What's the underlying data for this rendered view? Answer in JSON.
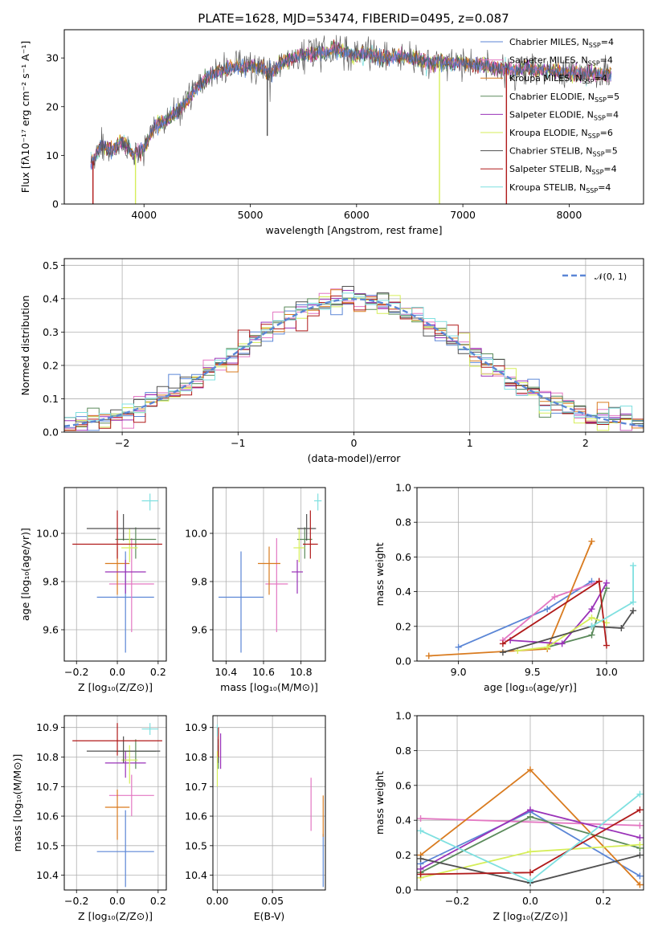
{
  "figure_title": "PLATE=1628, MJD=53474, FIBERID=0495, z=0.087",
  "colors": {
    "Chabrier MILES": "#5b86d6",
    "Salpeter MILES": "#e377c2",
    "Kroupa MILES": "#d97b1f",
    "Chabrier ELODIE": "#5b8a5b",
    "Salpeter ELODIE": "#9a32b8",
    "Kroupa ELODIE": "#d6ee5a",
    "Chabrier STELIB": "#505050",
    "Salpeter STELIB": "#b01a1a",
    "Kroupa STELIB": "#7fe0e0"
  },
  "chart_data": [
    {
      "id": "spectrum",
      "type": "line",
      "xlabel": "wavelength [Angstrom, rest frame]",
      "ylabel": "Flux [fλ10⁻¹⁷ erg cm⁻² s⁻¹ A⁻¹]",
      "xlim": [
        3250,
        8700
      ],
      "ylim": [
        0,
        35.8
      ],
      "xticks": [
        "4000",
        "5000",
        "6000",
        "7000",
        "8000"
      ],
      "yticks": [
        "0",
        "10",
        "20",
        "30"
      ],
      "grid": false,
      "legend": "top-right",
      "legend_entries": [
        "Chabrier MILES, N_SSP=4",
        "Salpeter MILES, N_SSP=4",
        "Kroupa MILES, N_SSP=4",
        "Chabrier ELODIE, N_SSP=5",
        "Salpeter ELODIE, N_SSP=4",
        "Kroupa ELODIE, N_SSP=6",
        "Chabrier STELIB, N_SSP=5",
        "Salpeter STELIB, N_SSP=4",
        "Kroupa STELIB, N_SSP=4"
      ],
      "continuum": {
        "x": [
          3500,
          3600,
          3700,
          3800,
          3900,
          4000,
          4100,
          4200,
          4300,
          4400,
          4500,
          4600,
          4700,
          4800,
          4900,
          5000,
          5100,
          5200,
          5300,
          5400,
          5500,
          5600,
          5700,
          5800,
          5900,
          6000,
          6100,
          6200,
          6300,
          6400,
          6500,
          6600,
          6700,
          6800,
          6900,
          7000,
          7100,
          7200,
          7300,
          7400,
          7500,
          7600,
          7700,
          7800,
          7900,
          8000,
          8100,
          8200,
          8300,
          8400
        ],
        "y": [
          8,
          12,
          11,
          13,
          10,
          11.5,
          16,
          17,
          18.5,
          21,
          24,
          26,
          27,
          28,
          28,
          28.5,
          28,
          27,
          29,
          30,
          30.5,
          31,
          31,
          32,
          31,
          30.5,
          31,
          30,
          30,
          30.5,
          30,
          29.5,
          29,
          29.5,
          29,
          29,
          28.5,
          28.5,
          28,
          28,
          27.5,
          28,
          27.5,
          27.5,
          27,
          27,
          27,
          27,
          26.5,
          26.5
        ]
      },
      "spikes": [
        {
          "x": 3520,
          "y": 0
        },
        {
          "x": 3920,
          "y": 0
        },
        {
          "x": 5160,
          "y": 14
        },
        {
          "x": 6780,
          "y": 0
        },
        {
          "x": 7410,
          "y": 0
        }
      ]
    },
    {
      "id": "residuals",
      "type": "histogram",
      "xlabel": "(data-model)/error",
      "ylabel": "Normed distribution",
      "xlim": [
        -2.5,
        2.5
      ],
      "ylim": [
        0,
        0.52
      ],
      "xticks": [
        "−2",
        "−1",
        "0",
        "1",
        "2"
      ],
      "yticks": [
        "0.0",
        "0.1",
        "0.2",
        "0.3",
        "0.4",
        "0.5"
      ],
      "grid": true,
      "legend": "top-right",
      "legend_label": "𝒩(0, 1)",
      "bin_width": 0.1,
      "reference_curve": "normal(0,1)"
    },
    {
      "id": "age-vs-Z",
      "type": "scatter",
      "xlabel": "Z [log₁₀(Z/Z⊙)]",
      "ylabel": "age  [log₁₀(age/yr)]",
      "xlim": [
        -0.26,
        0.24
      ],
      "ylim": [
        9.47,
        10.19
      ],
      "xticks": [
        "−0.2",
        "0.0",
        "0.2"
      ],
      "yticks": [
        "9.6",
        "9.8",
        "10.0"
      ],
      "grid": true,
      "series": [
        {
          "name": "Chabrier MILES",
          "x": 0.04,
          "y": 9.735,
          "xerr": 0.14,
          "yerr": [
            0.23,
            0.19
          ]
        },
        {
          "name": "Salpeter MILES",
          "x": 0.07,
          "y": 9.79,
          "xerr": 0.11,
          "yerr": [
            0.2,
            0.19
          ]
        },
        {
          "name": "Kroupa MILES",
          "x": 0.0,
          "y": 9.875,
          "xerr": 0.06,
          "yerr": [
            0.13,
            0.07
          ]
        },
        {
          "name": "Chabrier ELODIE",
          "x": 0.09,
          "y": 9.975,
          "xerr": 0.1,
          "yerr": [
            0.08,
            0.05
          ]
        },
        {
          "name": "Salpeter ELODIE",
          "x": 0.04,
          "y": 9.84,
          "xerr": 0.1,
          "yerr": [
            0.09,
            0.05
          ]
        },
        {
          "name": "Kroupa ELODIE",
          "x": 0.06,
          "y": 9.94,
          "xerr": 0.04,
          "yerr": [
            0.06,
            0.08
          ]
        },
        {
          "name": "Chabrier STELIB",
          "x": 0.03,
          "y": 10.02,
          "xerr": 0.18,
          "yerr": [
            0.05,
            0.06
          ]
        },
        {
          "name": "Salpeter STELIB",
          "x": 0.0,
          "y": 9.955,
          "xerr": 0.22,
          "yerr": [
            0.06,
            0.14
          ]
        },
        {
          "name": "Kroupa STELIB",
          "x": 0.16,
          "y": 10.135,
          "xerr": 0.04,
          "yerr": [
            0.04,
            0.03
          ]
        }
      ]
    },
    {
      "id": "age-vs-mass",
      "type": "scatter",
      "xlabel": "mass [log₁₀(M/M⊙)]",
      "ylabel": "",
      "xlim": [
        10.33,
        10.93
      ],
      "ylim": [
        9.47,
        10.19
      ],
      "xticks": [
        "10.4",
        "10.6",
        "10.8"
      ],
      "yticks": [
        "9.6",
        "9.8",
        "10.0"
      ],
      "grid": true,
      "series": [
        {
          "name": "Chabrier MILES",
          "x": 10.48,
          "y": 9.735,
          "xerr": 0.12,
          "yerr": [
            0.23,
            0.19
          ]
        },
        {
          "name": "Salpeter MILES",
          "x": 10.67,
          "y": 9.79,
          "xerr": 0.06,
          "yerr": [
            0.2,
            0.19
          ]
        },
        {
          "name": "Kroupa MILES",
          "x": 10.63,
          "y": 9.875,
          "xerr": 0.06,
          "yerr": [
            0.13,
            0.07
          ]
        },
        {
          "name": "Chabrier ELODIE",
          "x": 10.82,
          "y": 9.975,
          "xerr": 0.04,
          "yerr": [
            0.08,
            0.05
          ]
        },
        {
          "name": "Salpeter ELODIE",
          "x": 10.78,
          "y": 9.84,
          "xerr": 0.03,
          "yerr": [
            0.09,
            0.05
          ]
        },
        {
          "name": "Kroupa ELODIE",
          "x": 10.79,
          "y": 9.94,
          "xerr": 0.03,
          "yerr": [
            0.06,
            0.08
          ]
        },
        {
          "name": "Chabrier STELIB",
          "x": 10.83,
          "y": 10.02,
          "xerr": 0.05,
          "yerr": [
            0.05,
            0.06
          ]
        },
        {
          "name": "Salpeter STELIB",
          "x": 10.85,
          "y": 9.955,
          "xerr": 0.04,
          "yerr": [
            0.06,
            0.14
          ]
        },
        {
          "name": "Kroupa STELIB",
          "x": 10.89,
          "y": 10.135,
          "xerr": 0.02,
          "yerr": [
            0.04,
            0.03
          ]
        }
      ]
    },
    {
      "id": "massweight-vs-age",
      "type": "line",
      "xlabel": "age  [log₁₀(age/yr)]",
      "ylabel": "mass weight",
      "xlim": [
        8.72,
        10.25
      ],
      "ylim": [
        0,
        1
      ],
      "xticks": [
        "9.0",
        "9.5",
        "10.0"
      ],
      "yticks": [
        "0.0",
        "0.2",
        "0.4",
        "0.6",
        "0.8",
        "1.0"
      ],
      "grid": true,
      "series": [
        {
          "name": "Chabrier MILES",
          "x": [
            9.0,
            9.6,
            9.9
          ],
          "y": [
            0.08,
            0.3,
            0.46
          ]
        },
        {
          "name": "Salpeter MILES",
          "x": [
            9.3,
            9.65,
            9.95
          ],
          "y": [
            0.12,
            0.37,
            0.46
          ]
        },
        {
          "name": "Kroupa MILES",
          "x": [
            8.8,
            9.6,
            9.9
          ],
          "y": [
            0.03,
            0.07,
            0.69
          ]
        },
        {
          "name": "Chabrier ELODIE",
          "x": [
            9.6,
            9.9,
            10.0
          ],
          "y": [
            0.08,
            0.15,
            0.42
          ]
        },
        {
          "name": "Salpeter ELODIE",
          "x": [
            9.35,
            9.7,
            9.9,
            10.0
          ],
          "y": [
            0.12,
            0.1,
            0.3,
            0.45
          ]
        },
        {
          "name": "Kroupa ELODIE",
          "x": [
            9.4,
            9.6,
            9.9,
            10.0
          ],
          "y": [
            0.06,
            0.08,
            0.25,
            0.22
          ]
        },
        {
          "name": "Chabrier STELIB",
          "x": [
            9.3,
            9.9,
            10.1,
            10.18
          ],
          "y": [
            0.05,
            0.2,
            0.19,
            0.29
          ]
        },
        {
          "name": "Salpeter STELIB",
          "x": [
            9.3,
            9.95,
            10.0
          ],
          "y": [
            0.1,
            0.46,
            0.09
          ]
        },
        {
          "name": "Kroupa STELIB",
          "x": [
            9.9,
            10.18,
            10.18
          ],
          "y": [
            0.2,
            0.34,
            0.55
          ]
        }
      ]
    },
    {
      "id": "mass-vs-Z",
      "type": "scatter",
      "xlabel": "Z [log₁₀(Z/Z⊙)]",
      "ylabel": "mass [log₁₀(M/M⊙)]",
      "xlim": [
        -0.26,
        0.24
      ],
      "ylim": [
        10.35,
        10.94
      ],
      "xticks": [
        "−0.2",
        "0.0",
        "0.2"
      ],
      "yticks": [
        "10.4",
        "10.5",
        "10.6",
        "10.7",
        "10.8",
        "10.9"
      ],
      "grid": true,
      "series": [
        {
          "name": "Chabrier MILES",
          "x": 0.04,
          "y": 10.48,
          "xerr": 0.14,
          "yerr": [
            0.12,
            0.14
          ]
        },
        {
          "name": "Salpeter MILES",
          "x": 0.07,
          "y": 10.67,
          "xerr": 0.11,
          "yerr": [
            0.07,
            0.07
          ]
        },
        {
          "name": "Kroupa MILES",
          "x": 0.0,
          "y": 10.63,
          "xerr": 0.06,
          "yerr": [
            0.11,
            0.06
          ]
        },
        {
          "name": "Chabrier ELODIE",
          "x": 0.09,
          "y": 10.82,
          "xerr": 0.1,
          "yerr": [
            0.06,
            0.04
          ]
        },
        {
          "name": "Salpeter ELODIE",
          "x": 0.04,
          "y": 10.78,
          "xerr": 0.1,
          "yerr": [
            0.05,
            0.04
          ]
        },
        {
          "name": "Kroupa ELODIE",
          "x": 0.06,
          "y": 10.79,
          "xerr": 0.04,
          "yerr": [
            0.08,
            0.05
          ]
        },
        {
          "name": "Chabrier STELIB",
          "x": 0.03,
          "y": 10.82,
          "xerr": 0.18,
          "yerr": [
            0.04,
            0.05
          ]
        },
        {
          "name": "Salpeter STELIB",
          "x": 0.0,
          "y": 10.855,
          "xerr": 0.22,
          "yerr": [
            0.05,
            0.06
          ]
        },
        {
          "name": "Kroupa STELIB",
          "x": 0.16,
          "y": 10.895,
          "xerr": 0.04,
          "yerr": [
            0.02,
            0.02
          ]
        }
      ]
    },
    {
      "id": "mass-vs-EBV",
      "type": "scatter",
      "xlabel": "E(B-V)",
      "ylabel": "",
      "xlim": [
        -0.004,
        0.098
      ],
      "ylim": [
        10.35,
        10.94
      ],
      "xticks": [
        "0.00",
        "0.05"
      ],
      "yticks": [
        "10.4",
        "10.5",
        "10.6",
        "10.7",
        "10.8",
        "10.9"
      ],
      "grid": true,
      "series": [
        {
          "name": "Chabrier MILES",
          "x": 0.096,
          "y": 10.45,
          "yerr": [
            0.09,
            0.09
          ]
        },
        {
          "name": "Salpeter MILES",
          "x": 0.085,
          "y": 10.64,
          "yerr": [
            0.09,
            0.09
          ]
        },
        {
          "name": "Kroupa MILES",
          "x": 0.096,
          "y": 10.6,
          "yerr": [
            0.07,
            0.07
          ]
        },
        {
          "name": "Chabrier ELODIE",
          "x": 0.001,
          "y": 10.8,
          "yerr": [
            0.04,
            0.04
          ]
        },
        {
          "name": "Salpeter ELODIE",
          "x": 0.003,
          "y": 10.82,
          "yerr": [
            0.06,
            0.06
          ]
        },
        {
          "name": "Kroupa ELODIE",
          "x": 0.0,
          "y": 10.76,
          "yerr": [
            0.06,
            0.06
          ]
        },
        {
          "name": "Chabrier STELIB",
          "x": 0.001,
          "y": 10.82,
          "yerr": [
            0.04,
            0.04
          ]
        },
        {
          "name": "Salpeter STELIB",
          "x": 0.001,
          "y": 10.85,
          "yerr": [
            0.05,
            0.05
          ]
        },
        {
          "name": "Kroupa STELIB",
          "x": 0.0,
          "y": 10.89,
          "yerr": [
            0.02,
            0.02
          ]
        }
      ]
    },
    {
      "id": "massweight-vs-Z",
      "type": "line",
      "xlabel": "Z [log₁₀(Z/Z⊙)]",
      "ylabel": "mass weight",
      "xlim": [
        -0.31,
        0.31
      ],
      "ylim": [
        0,
        1
      ],
      "xticks": [
        "−0.2",
        "0.0",
        "0.2"
      ],
      "yticks": [
        "0.0",
        "0.2",
        "0.4",
        "0.6",
        "0.8",
        "1.0"
      ],
      "grid": true,
      "series": [
        {
          "name": "Chabrier MILES",
          "x": [
            -0.3,
            0.0,
            0.3
          ],
          "y": [
            0.15,
            0.45,
            0.08
          ]
        },
        {
          "name": "Salpeter MILES",
          "x": [
            -0.3,
            0.3
          ],
          "y": [
            0.41,
            0.37
          ]
        },
        {
          "name": "Kroupa MILES",
          "x": [
            -0.3,
            0.0,
            0.3
          ],
          "y": [
            0.2,
            0.69,
            0.03
          ]
        },
        {
          "name": "Chabrier ELODIE",
          "x": [
            -0.3,
            0.0,
            0.3
          ],
          "y": [
            0.1,
            0.42,
            0.24
          ]
        },
        {
          "name": "Salpeter ELODIE",
          "x": [
            -0.3,
            0.0,
            0.3
          ],
          "y": [
            0.12,
            0.46,
            0.3
          ]
        },
        {
          "name": "Kroupa ELODIE",
          "x": [
            -0.3,
            0.0,
            0.3
          ],
          "y": [
            0.07,
            0.22,
            0.26
          ]
        },
        {
          "name": "Chabrier STELIB",
          "x": [
            -0.3,
            0.0,
            0.3
          ],
          "y": [
            0.18,
            0.04,
            0.2
          ]
        },
        {
          "name": "Salpeter STELIB",
          "x": [
            -0.3,
            0.0,
            0.3
          ],
          "y": [
            0.09,
            0.1,
            0.46
          ]
        },
        {
          "name": "Kroupa STELIB",
          "x": [
            -0.3,
            0.0,
            0.3
          ],
          "y": [
            0.34,
            0.05,
            0.55
          ]
        }
      ]
    }
  ]
}
